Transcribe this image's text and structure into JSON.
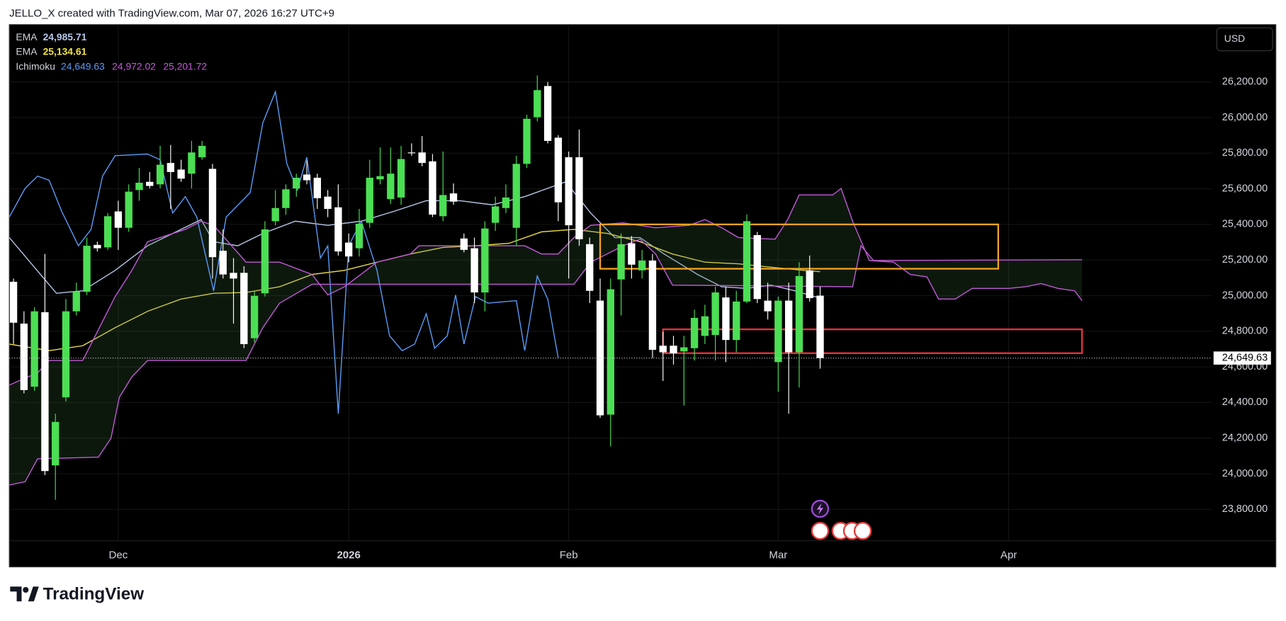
{
  "header": {
    "title": "JELLO_X created with TradingView.com, Mar 07, 2026 16:27 UTC+9"
  },
  "chart_data": {
    "type": "candlestick",
    "currency_button": "USD",
    "x": [
      0,
      1,
      2,
      3,
      4,
      5,
      6,
      7,
      8,
      9,
      10,
      11,
      12,
      13,
      14,
      15,
      16,
      17,
      18,
      19,
      20,
      21,
      22,
      23,
      24,
      25,
      26,
      27,
      28,
      29,
      30,
      31,
      32,
      33,
      34,
      35,
      36,
      37,
      38,
      39,
      40,
      41,
      42,
      43,
      44,
      45,
      46,
      47,
      48,
      49,
      50,
      51,
      52,
      53,
      54,
      55,
      56,
      57,
      58,
      59,
      60,
      61,
      62,
      63,
      64,
      65,
      66,
      67,
      68,
      69,
      70,
      71,
      72,
      73,
      74,
      75,
      76,
      77
    ],
    "open": [
      25078,
      24843,
      24489,
      24907,
      24047,
      24429,
      24912,
      25022,
      25285,
      25271,
      25473,
      25381,
      25593,
      25639,
      25625,
      25745,
      25708,
      25685,
      25777,
      25712,
      25252,
      25128,
      25128,
      24761,
      25013,
      25418,
      25492,
      25602,
      25680,
      25662,
      25556,
      25496,
      25298,
      25266,
      25409,
      25653,
      25542,
      25551,
      25804,
      25804,
      25754,
      25446,
      25574,
      25321,
      25266,
      25018,
      25409,
      25492,
      25381,
      25740,
      26002,
      26177,
      25887,
      25777,
      25777,
      25289,
      24972,
      24332,
      25091,
      25294,
      25142,
      25197,
      24719,
      24719,
      24687,
      24705,
      24774,
      24779,
      24990,
      24751,
      24967,
      25340,
      24972,
      24627,
      24972,
      24682,
      25142,
      25000
    ],
    "high": [
      25096,
      24912,
      24935,
      25234,
      24337,
      24981,
      25073,
      25326,
      25303,
      25464,
      25533,
      25625,
      25717,
      25694,
      25841,
      25846,
      25763,
      25869,
      25869,
      25740,
      25372,
      25211,
      25165,
      25027,
      25418,
      25593,
      25625,
      25685,
      25758,
      25685,
      25593,
      25625,
      25349,
      25487,
      25763,
      25832,
      25832,
      25841,
      25855,
      25896,
      25795,
      25809,
      25630,
      25349,
      25326,
      25418,
      25556,
      25625,
      25786,
      26016,
      26237,
      26200,
      25901,
      25809,
      25933,
      25326,
      25096,
      25096,
      25349,
      25335,
      25257,
      25234,
      24797,
      24774,
      24774,
      24921,
      24949,
      25050,
      25050,
      25027,
      25455,
      25358,
      25073,
      24995,
      25073,
      25188,
      25225,
      25050
    ],
    "low": [
      24728,
      24452,
      24466,
      23992,
      23854,
      24406,
      24889,
      25004,
      25248,
      25257,
      25257,
      25358,
      25533,
      25602,
      25602,
      25487,
      25639,
      25602,
      25763,
      25096,
      25096,
      24843,
      24705,
      24738,
      24995,
      25395,
      25455,
      25556,
      25625,
      25487,
      25441,
      25225,
      25188,
      25220,
      25381,
      25625,
      25515,
      25510,
      25786,
      25726,
      25441,
      25418,
      25510,
      25243,
      24958,
      24912,
      25363,
      25464,
      25280,
      25717,
      25979,
      25855,
      25418,
      25096,
      25280,
      24958,
      24314,
      24153,
      24889,
      25096,
      25096,
      24650,
      24521,
      24613,
      24383,
      24636,
      24728,
      24636,
      24627,
      24682,
      24958,
      24958,
      24866,
      24461,
      24337,
      24484,
      24967,
      24590
    ],
    "close": [
      24848,
      24470,
      24912,
      24015,
      24291,
      24912,
      25022,
      25280,
      25266,
      25446,
      25381,
      25584,
      25634,
      25616,
      25735,
      25694,
      25657,
      25804,
      25841,
      25216,
      25119,
      25096,
      24728,
      24999,
      25372,
      25492,
      25597,
      25662,
      25648,
      25547,
      25487,
      25248,
      25220,
      25404,
      25662,
      25671,
      25685,
      25767,
      25800,
      25745,
      25455,
      25565,
      25528,
      25257,
      25018,
      25377,
      25501,
      25551,
      25740,
      25993,
      26154,
      25869,
      25524,
      25395,
      25317,
      25027,
      24328,
      25036,
      25289,
      25174,
      25197,
      24696,
      24682,
      24677,
      24710,
      24875,
      24884,
      25018,
      24751,
      24967,
      25418,
      24981,
      24912,
      24972,
      24682,
      25110,
      24986,
      24649.63
    ],
    "up_color": "#4cde54",
    "down_color": "#ffffff",
    "last_price_label": "24,649.63",
    "xlim": [
      -0.4,
      114.4
    ],
    "xticks": [
      {
        "value": 10,
        "label": "Dec"
      },
      {
        "value": 32,
        "label": "2026"
      },
      {
        "value": 53,
        "label": "Feb"
      },
      {
        "value": 73,
        "label": "Mar"
      },
      {
        "value": 95,
        "label": "Apr"
      }
    ],
    "ylim": [
      23624,
      26522
    ],
    "yticks": [
      {
        "value": 23800,
        "label": "23,800.00"
      },
      {
        "value": 24000,
        "label": "24,000.00"
      },
      {
        "value": 24200,
        "label": "24,200.00"
      },
      {
        "value": 24400,
        "label": "24,400.00"
      },
      {
        "value": 24600,
        "label": "24,600.00"
      },
      {
        "value": 24800,
        "label": "24,800.00"
      },
      {
        "value": 25000,
        "label": "25,000.00"
      },
      {
        "value": 25200,
        "label": "25,200.00"
      },
      {
        "value": 25400,
        "label": "25,400.00"
      },
      {
        "value": 25600,
        "label": "25,600.00"
      },
      {
        "value": 25800,
        "label": "25,800.00"
      },
      {
        "value": 26000,
        "label": "26,000.00"
      },
      {
        "value": 26200,
        "label": "26,200.00"
      }
    ],
    "grid": true,
    "indicators": [
      {
        "name": "EMA",
        "value_labels": [
          "24,985.71"
        ],
        "lines": [
          {
            "color": "#b8c8e8",
            "x": [
              -0.4,
              4.1,
              6.6,
              9.7,
              12.8,
              17.9,
              19.1,
              21.4,
              23.8,
              26.9,
              30.0,
              33.2,
              36.3,
              39.4,
              42.6,
              45.7,
              48.8,
              52.7,
              55.1,
              57.4,
              59.8,
              62.1,
              65.3,
              67.6,
              70.0,
              72.3,
              74.6,
              77
            ],
            "values": [
              25326,
              25013,
              25027,
              25142,
              25280,
              25427,
              25303,
              25280,
              25349,
              25418,
              25395,
              25418,
              25473,
              25533,
              25533,
              25510,
              25556,
              25639,
              25464,
              25326,
              25326,
              25234,
              25119,
              25050,
              25041,
              25059,
              25027,
              24985.71
            ]
          }
        ]
      },
      {
        "name": "EMA",
        "value_labels": [
          "25,134.61"
        ],
        "lines": [
          {
            "color": "#f2e24a",
            "x": [
              -0.4,
              3.4,
              6.6,
              9.7,
              12.8,
              16.0,
              19.1,
              22.2,
              25.4,
              28.5,
              31.6,
              34.7,
              37.9,
              41.0,
              44.1,
              47.3,
              50.4,
              53.5,
              56.7,
              59.8,
              62.9,
              66.0,
              69.2,
              72.3,
              75.4,
              77
            ],
            "values": [
              24728,
              24691,
              24719,
              24820,
              24912,
              24981,
              25013,
              25018,
              25050,
              25119,
              25142,
              25188,
              25234,
              25271,
              25280,
              25294,
              25358,
              25372,
              25349,
              25303,
              25234,
              25188,
              25179,
              25160,
              25142,
              25134.61
            ]
          }
        ]
      },
      {
        "name": "Ichimoku",
        "value_labels": [
          "24,649.63",
          "24,972.02",
          "25,201.72"
        ],
        "cloud_color": "#3c6e3c",
        "lines": [
          {
            "color": "#5b9cf6",
            "x": [
              -0.4,
              1.1,
              2.3,
              3.4,
              4.6,
              6.2,
              7.4,
              8.5,
              9.7,
              12.8,
              14.0,
              15.2,
              16.4,
              17.5,
              19.1,
              20.3,
              22.6,
              23.8,
              25.0,
              26.1,
              27.1,
              28.0,
              29.3,
              30.0,
              31.0,
              32.0,
              33.2,
              34.7,
              35.9,
              37.1,
              38.3,
              39.4,
              40.2,
              41.4,
              42.2,
              43.0,
              44.1,
              45.3,
              48.0,
              48.8,
              50.0,
              51.0,
              52.0
            ],
            "values": [
              25441,
              25602,
              25671,
              25648,
              25473,
              25280,
              25372,
              25671,
              25786,
              25795,
              25763,
              25464,
              25556,
              25441,
              25027,
              25441,
              25579,
              25970,
              26145,
              25740,
              25593,
              25777,
              25211,
              25280,
              24337,
              25280,
              25418,
              25142,
              24774,
              24691,
              24728,
              24898,
              24705,
              24774,
              25004,
              24728,
              24995,
              24958,
              24972,
              24691,
              25110,
              24981,
              24649.63
            ]
          },
          {
            "color": "#c25bd8",
            "x": [
              -0.4,
              2.3,
              3.4,
              6.6,
              7.4,
              9.7,
              11.3,
              12.8,
              16.4,
              17.9,
              19.1,
              22.2,
              25.4,
              28.5,
              30.0,
              31.6,
              34.7,
              37.9,
              38.7,
              45.7,
              48.8,
              50.4,
              52.0,
              53.5,
              55.1,
              58.2,
              61.3,
              64.5,
              66.0,
              67.6,
              69.2,
              72.7,
              73.9,
              75.0,
              78.2,
              79.0,
              80.1,
              81.7,
              84.0,
              85.6,
              87.2,
              88.3,
              89.9,
              91.5,
              95.0,
              96.6,
              98.1,
              99.7,
              101.3,
              102.0
            ],
            "values": [
              24498,
              24567,
              24636,
              24636,
              24728,
              24995,
              25142,
              25303,
              25372,
              25418,
              25395,
              25188,
              25188,
              25119,
              25004,
              25050,
              25188,
              25234,
              25280,
              25280,
              25280,
              25234,
              25234,
              25326,
              25395,
              25409,
              25381,
              25395,
              25427,
              25381,
              25326,
              25317,
              25427,
              25565,
              25565,
              25602,
              25418,
              25197,
              25188,
              25119,
              25105,
              24981,
              24981,
              25041,
              25041,
              25050,
              25068,
              25041,
              25027,
              24972.02
            ]
          },
          {
            "color": "#c25bd8",
            "x": [
              -0.4,
              1.1,
              2.3,
              8.1,
              9.3,
              10.1,
              11.3,
              12.8,
              22.2,
              23.8,
              25.4,
              28.5,
              53.5,
              55.1,
              58.2,
              59.8,
              61.3,
              62.9,
              80.1,
              80.9,
              82.1,
              102.0
            ],
            "values": [
              23937,
              23955,
              24084,
              24093,
              24199,
              24429,
              24544,
              24636,
              24636,
              24820,
              24958,
              25064,
              25064,
              25188,
              25280,
              25317,
              25234,
              25059,
              25050,
              25280,
              25197,
              25201.72
            ]
          }
        ]
      }
    ],
    "zones": [
      {
        "color": "#f5a31f",
        "x": [
          56,
          94
        ],
        "y": [
          25400,
          25151
        ]
      },
      {
        "color": "#e8333b",
        "x": [
          62,
          102
        ],
        "y": [
          24811,
          24677
        ]
      }
    ]
  },
  "footer": {
    "brand": "TradingView"
  }
}
